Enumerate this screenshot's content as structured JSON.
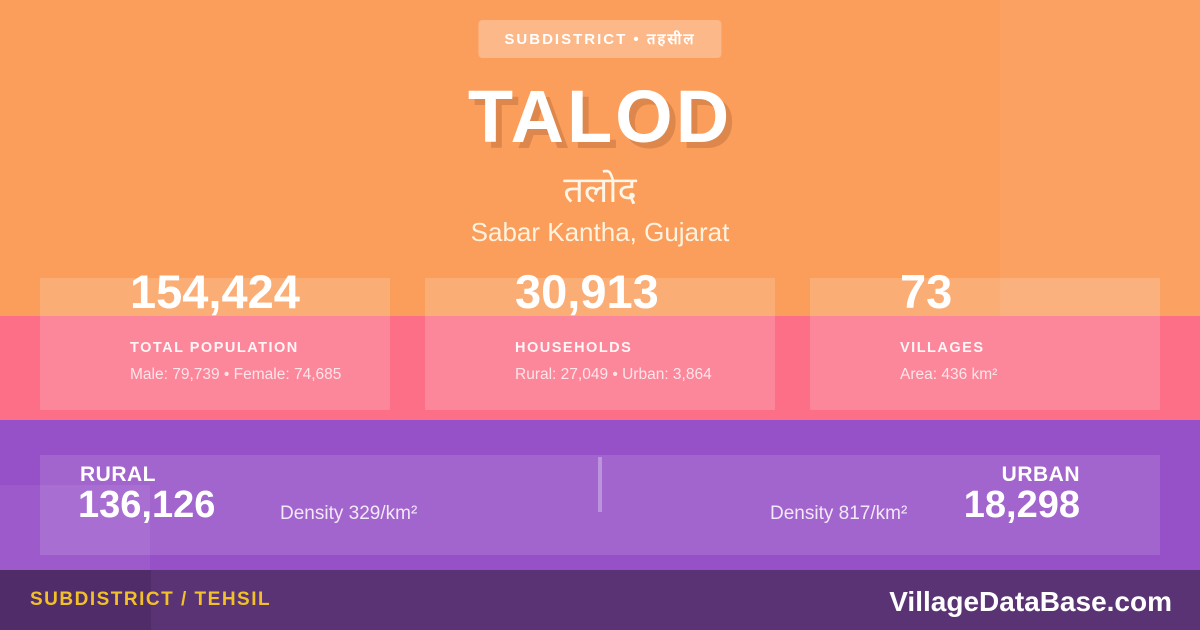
{
  "colors": {
    "orange_bg": "#FB9D5B",
    "pink_bg": "#FC6F87",
    "purple_bg": "#9650C8",
    "footer_bg": "#5A3374",
    "accent_yellow": "#F2C127",
    "text_white": "#FFFFFF"
  },
  "header": {
    "badge": "SUBDISTRICT • तहसील",
    "title": "TALOD",
    "title_native": "तलोद",
    "location": "Sabar Kantha, Gujarat"
  },
  "stats": [
    {
      "value": "154,424",
      "label": "TOTAL POPULATION",
      "detail": "Male: 79,739 • Female: 74,685"
    },
    {
      "value": "30,913",
      "label": "HOUSEHOLDS",
      "detail": "Rural: 27,049 • Urban: 3,864"
    },
    {
      "value": "73",
      "label": "VILLAGES",
      "detail": "Area: 436 km²"
    }
  ],
  "breakdown": {
    "rural": {
      "label": "RURAL",
      "value": "136,126",
      "density": "Density 329/km²"
    },
    "urban": {
      "label": "URBAN",
      "value": "18,298",
      "density": "Density 817/km²"
    }
  },
  "footer": {
    "left": "SUBDISTRICT / TEHSIL",
    "right": "VillageDataBase.com"
  }
}
